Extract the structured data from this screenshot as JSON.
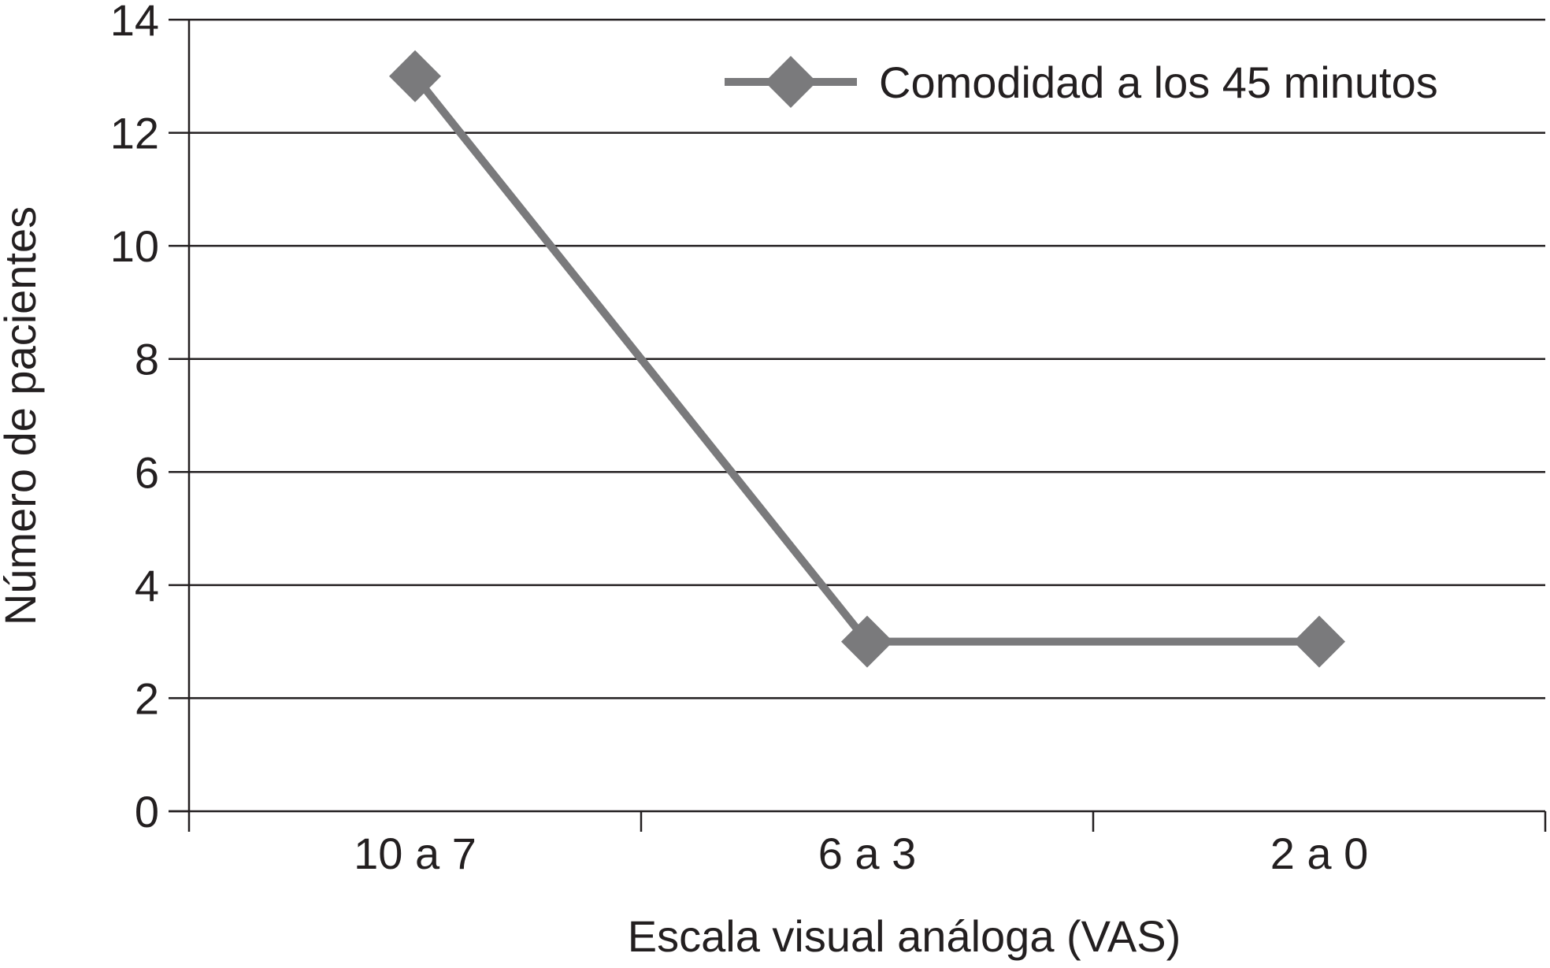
{
  "chart_data": {
    "type": "line",
    "title": "",
    "xlabel": "Escala visual análoga (VAS)",
    "ylabel": "Número de pacientes",
    "categories": [
      "10 a 7",
      "6 a 3",
      "2 a 0"
    ],
    "series": [
      {
        "name": "Comodidad a los 45 minutos",
        "values": [
          13,
          3,
          3
        ],
        "color": "#7a7a7c",
        "marker": "diamond"
      }
    ],
    "ylim": [
      0,
      14
    ],
    "yticks": [
      0,
      2,
      4,
      6,
      8,
      10,
      12,
      14
    ],
    "grid": "horizontal",
    "legend_position": "top-right"
  },
  "colors": {
    "series": "#7a7a7c",
    "axis": "#231f20",
    "grid": "#231f20",
    "text": "#231f20"
  }
}
